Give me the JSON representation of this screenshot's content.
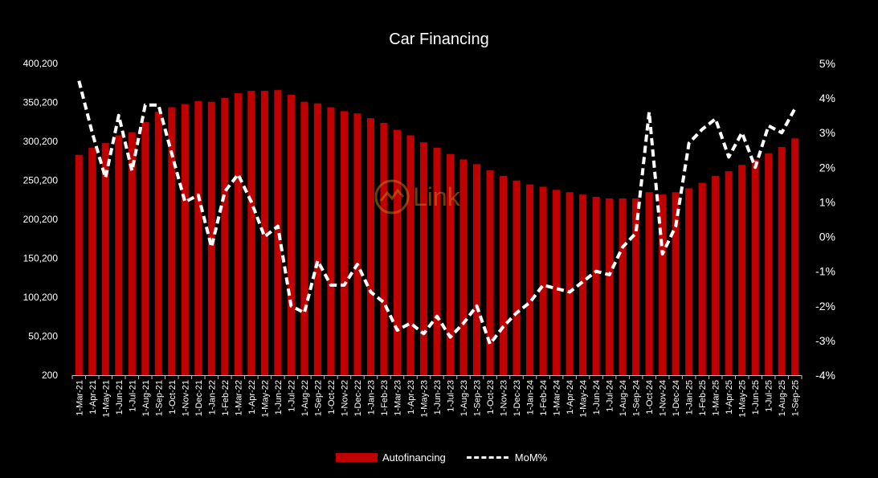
{
  "chart_data": {
    "type": "bar+line",
    "title": "Car Financing",
    "categories": [
      "1-Mar-21",
      "1-Apr-21",
      "1-May-21",
      "1-Jun-21",
      "1-Jul-21",
      "1-Aug-21",
      "1-Sep-21",
      "1-Oct-21",
      "1-Nov-21",
      "1-Dec-21",
      "1-Jan-22",
      "1-Feb-22",
      "1-Mar-22",
      "1-Apr-22",
      "1-May-22",
      "1-Jun-22",
      "1-Jul-22",
      "1-Aug-22",
      "1-Sep-22",
      "1-Oct-22",
      "1-Nov-22",
      "1-Dec-22",
      "1-Jan-23",
      "1-Feb-23",
      "1-Mar-23",
      "1-Apr-23",
      "1-May-23",
      "1-Jun-23",
      "1-Jul-23",
      "1-Aug-23",
      "1-Sep-23",
      "1-Oct-23",
      "1-Nov-23",
      "1-Dec-23",
      "1-Jan-24",
      "1-Feb-24",
      "1-Mar-24",
      "1-Apr-24",
      "1-May-24",
      "1-Jun-24",
      "1-Jul-24",
      "1-Aug-24",
      "1-Sep-24",
      "1-Oct-24",
      "1-Nov-24",
      "1-Dec-24",
      "1-Jan-25",
      "1-Feb-25",
      "1-Mar-25",
      "1-Apr-25",
      "1-May-25",
      "1-Jun-25",
      "1-Jul-25",
      "1-Aug-25",
      "1-Sep-25"
    ],
    "series": [
      {
        "name": "Autofinancing",
        "type": "bar",
        "axis": "left",
        "color": "#c00000",
        "values": [
          283000,
          292000,
          298000,
          308000,
          312000,
          325000,
          338000,
          344000,
          348000,
          352000,
          351000,
          356000,
          362000,
          365000,
          365000,
          366000,
          360000,
          351000,
          349000,
          344000,
          339000,
          336000,
          330000,
          324000,
          315000,
          308000,
          299000,
          292000,
          284000,
          277000,
          271000,
          263000,
          256000,
          250000,
          245000,
          242000,
          238000,
          235000,
          232000,
          229000,
          227000,
          227000,
          227000,
          235000,
          232000,
          235000,
          240000,
          247000,
          256000,
          262000,
          270000,
          277000,
          285000,
          293000,
          304000
        ]
      },
      {
        "name": "MoM%",
        "type": "line",
        "axis": "right",
        "color": "#ffffff",
        "values": [
          4.5,
          3.0,
          1.7,
          3.5,
          1.9,
          3.8,
          3.8,
          2.4,
          1.0,
          1.2,
          -0.3,
          1.3,
          1.8,
          1.0,
          0.0,
          0.3,
          -2.0,
          -2.2,
          -0.7,
          -1.4,
          -1.4,
          -0.8,
          -1.6,
          -1.9,
          -2.7,
          -2.5,
          -2.8,
          -2.3,
          -2.9,
          -2.5,
          -2.0,
          -3.1,
          -2.6,
          -2.2,
          -1.9,
          -1.4,
          -1.5,
          -1.6,
          -1.3,
          -1.0,
          -1.1,
          -0.3,
          0.1,
          3.6,
          -0.5,
          0.3,
          2.7,
          3.1,
          3.4,
          2.3,
          3.0,
          2.0,
          3.2,
          3.0,
          3.7
        ]
      }
    ],
    "y_left": {
      "min": 200,
      "max": 400200,
      "ticks": [
        "400,200",
        "350,200",
        "300,200",
        "250,200",
        "200,200",
        "150,200",
        "100,200",
        "50,200",
        "200"
      ]
    },
    "y_right": {
      "min": -4,
      "max": 5,
      "ticks": [
        "5%",
        "4%",
        "3%",
        "2%",
        "1%",
        "0%",
        "-1%",
        "-2%",
        "-3%",
        "-4%"
      ]
    },
    "legend": {
      "position": "bottom",
      "items": [
        "Autofinancing",
        "MoM%"
      ]
    },
    "grid": false,
    "watermark_text": "Link"
  }
}
